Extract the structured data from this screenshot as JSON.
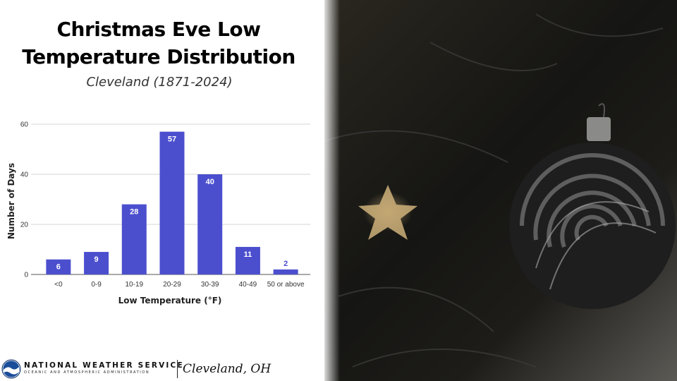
{
  "header": {
    "title_line1": "Christmas Eve Low",
    "title_line2": "Temperature Distribution",
    "subtitle": "Cleveland (1871-2024)"
  },
  "chart_data": {
    "type": "bar",
    "categories": [
      "<0",
      "0-9",
      "10-19",
      "20-29",
      "30-39",
      "40-49",
      "50 or above"
    ],
    "values": [
      6,
      9,
      28,
      57,
      40,
      11,
      2
    ],
    "data_labels": [
      "6",
      "9",
      "28",
      "57",
      "40",
      "11",
      "2"
    ],
    "xlabel": "Low Temperature (°F)",
    "ylabel": "Number of Days",
    "ylim": [
      0,
      60
    ],
    "yticks": [
      0,
      20,
      40,
      60
    ],
    "grid": true,
    "legend": "none",
    "bar_color": "#4b4fce",
    "label_color_inside": "#ffffff",
    "label_color_outside": "#4b4fce"
  },
  "footer": {
    "agency": "NATIONAL WEATHER SERVICE",
    "agency_sub": "OCEANIC AND ATMOSPHERIC ADMINISTRATION",
    "office": "Cleveland, OH",
    "logo_icon": "noaa-logo-icon"
  },
  "photo": {
    "icon": "christmas-ornament-photo"
  }
}
